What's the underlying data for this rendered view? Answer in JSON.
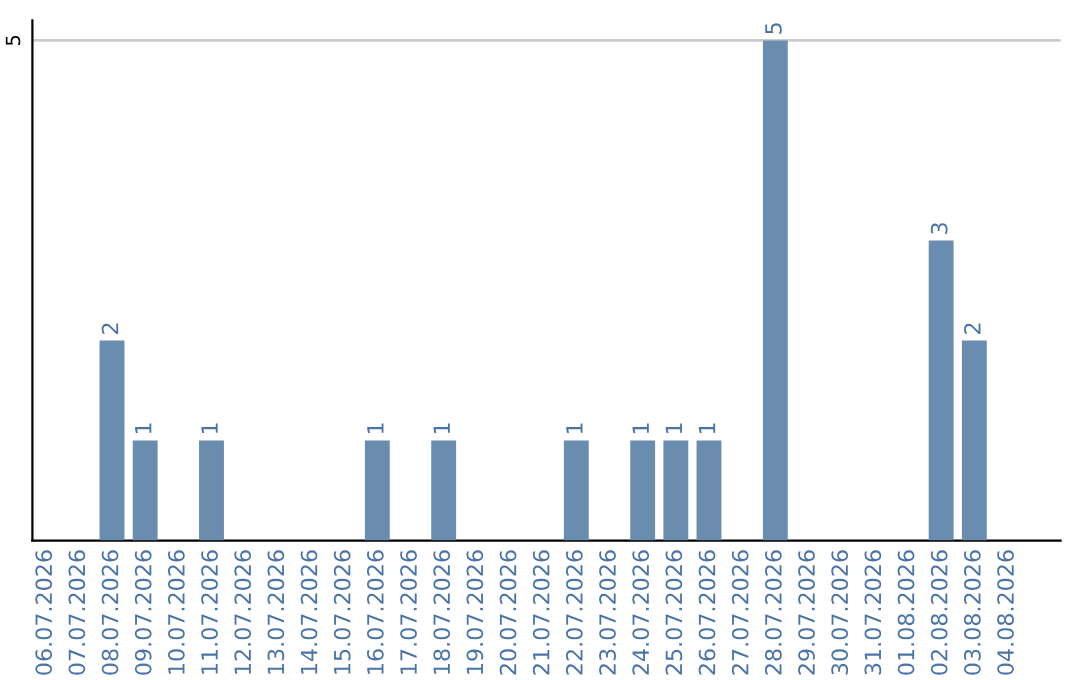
{
  "chart_data": {
    "type": "bar",
    "categories": [
      "06.07.2026",
      "07.07.2026",
      "08.07.2026",
      "09.07.2026",
      "10.07.2026",
      "11.07.2026",
      "12.07.2026",
      "13.07.2026",
      "14.07.2026",
      "15.07.2026",
      "16.07.2026",
      "17.07.2026",
      "18.07.2026",
      "19.07.2026",
      "20.07.2026",
      "21.07.2026",
      "22.07.2026",
      "23.07.2026",
      "24.07.2026",
      "25.07.2026",
      "26.07.2026",
      "27.07.2026",
      "28.07.2026",
      "29.07.2026",
      "30.07.2026",
      "31.07.2026",
      "01.08.2026",
      "02.08.2026",
      "03.08.2026",
      "04.08.2026"
    ],
    "values": [
      0,
      0,
      2,
      1,
      0,
      1,
      0,
      0,
      0,
      0,
      1,
      0,
      1,
      0,
      0,
      0,
      1,
      0,
      1,
      1,
      1,
      0,
      5,
      0,
      0,
      0,
      0,
      3,
      2,
      0
    ],
    "value_labels": [
      null,
      null,
      "2",
      "1",
      null,
      "1",
      null,
      null,
      null,
      null,
      "1",
      null,
      "1",
      null,
      null,
      null,
      "1",
      null,
      "1",
      "1",
      "1",
      null,
      "5",
      null,
      null,
      null,
      null,
      "3",
      "2",
      null
    ],
    "color": "#6a8caf",
    "ylim": [
      0,
      5.2
    ],
    "yticks": [
      5
    ],
    "grid": "y",
    "legend": false
  }
}
